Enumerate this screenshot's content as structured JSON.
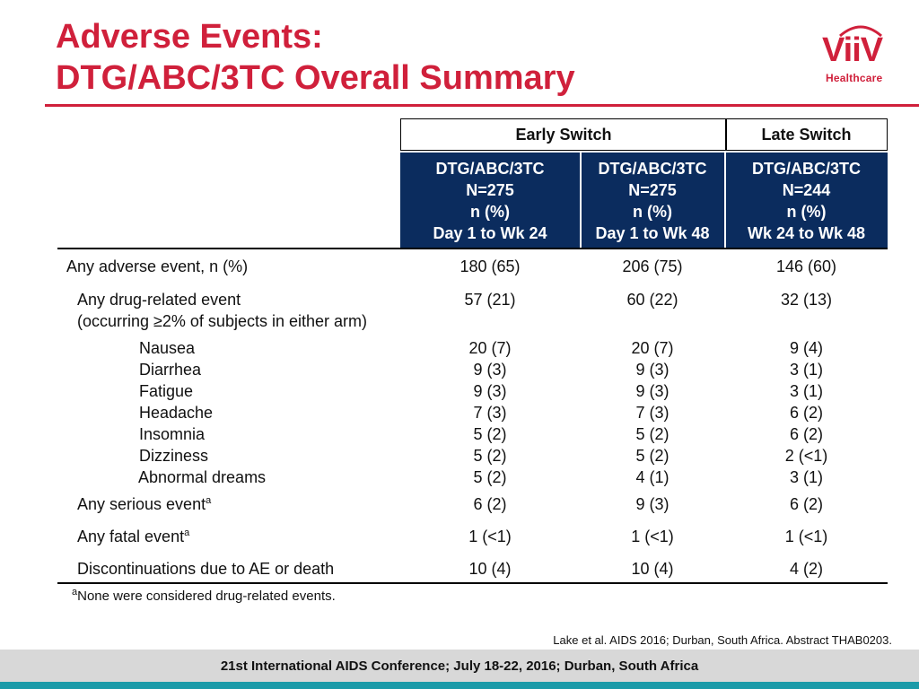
{
  "slide": {
    "title_line1": "Adverse Events:",
    "title_line2": "DTG/ABC/3TC Overall Summary",
    "logo": {
      "brand": "ViiV",
      "sub": "Healthcare"
    },
    "accent_color": "#d0203b",
    "header_color": "#0b2c5e"
  },
  "table": {
    "groups": [
      "Early Switch",
      "Late Switch"
    ],
    "columns": [
      {
        "drug": "DTG/ABC/3TC",
        "n": "N=275",
        "unit": "n (%)",
        "period": "Day 1 to Wk 24"
      },
      {
        "drug": "DTG/ABC/3TC",
        "n": "N=275",
        "unit": "n (%)",
        "period": "Day 1 to Wk 48"
      },
      {
        "drug": "DTG/ABC/3TC",
        "n": "N=244",
        "unit": "n (%)",
        "period": "Wk 24 to Wk 48"
      }
    ],
    "rows": {
      "any_ae": {
        "label": "Any adverse event, n (%)",
        "values": [
          "180 (65)",
          "206 (75)",
          "146 (60)"
        ]
      },
      "drug_related": {
        "label": "Any drug-related event",
        "label2": "(occurring ≥2% of subjects in either arm)",
        "values": [
          "57 (21)",
          "60 (22)",
          "32 (13)"
        ]
      },
      "nausea": {
        "label": "Nausea",
        "values": [
          "20 (7)",
          "20 (7)",
          "9 (4)"
        ]
      },
      "diarrhea": {
        "label": "Diarrhea",
        "values": [
          "9 (3)",
          "9 (3)",
          "3 (1)"
        ]
      },
      "fatigue": {
        "label": "Fatigue",
        "values": [
          "9 (3)",
          "9 (3)",
          "3 (1)"
        ]
      },
      "headache": {
        "label": "Headache",
        "values": [
          "7 (3)",
          "7 (3)",
          "6 (2)"
        ]
      },
      "insomnia": {
        "label": "Insomnia",
        "values": [
          "5 (2)",
          "5 (2)",
          "6 (2)"
        ]
      },
      "dizziness": {
        "label": "Dizziness",
        "values": [
          "5 (2)",
          "5 (2)",
          "2 (<1)"
        ]
      },
      "abnormal_dreams": {
        "label": "Abnormal dreams",
        "values": [
          "5 (2)",
          "4 (1)",
          "3 (1)"
        ]
      },
      "serious": {
        "label": "Any serious event",
        "sup": "a",
        "values": [
          "6 (2)",
          "9 (3)",
          "6 (2)"
        ]
      },
      "fatal": {
        "label": "Any fatal event",
        "sup": "a",
        "values": [
          "1 (<1)",
          "1 (<1)",
          "1 (<1)"
        ]
      },
      "discontinuations": {
        "label": "Discontinuations due to AE or death",
        "values": [
          "10 (4)",
          "10 (4)",
          "4 (2)"
        ]
      }
    }
  },
  "footnote": {
    "sup": "a",
    "text": "None were considered drug-related events."
  },
  "citation": "Lake et al. AIDS 2016; Durban, South Africa. Abstract THAB0203.",
  "footer": "21st International AIDS Conference; July 18-22, 2016; Durban, South Africa"
}
